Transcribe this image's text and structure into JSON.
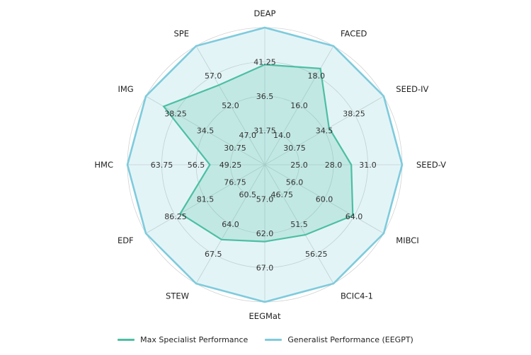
{
  "chart_data": {
    "type": "radar",
    "title": "",
    "axes": [
      "DEAP",
      "FACED",
      "SEED-IV",
      "SEED-V",
      "MIBCI",
      "BCIC4-1",
      "EEGMat",
      "STEW",
      "EDF",
      "HMC",
      "IMG",
      "SPE"
    ],
    "tick_labels": [
      [
        "31.75",
        "36.5",
        "41.25"
      ],
      [
        "14.0",
        "16.0",
        "18.0"
      ],
      [
        "30.75",
        "34.5",
        "38.25"
      ],
      [
        "25.0",
        "28.0",
        "31.0"
      ],
      [
        "56.0",
        "60.0",
        "64.0"
      ],
      [
        "46.75",
        "51.5",
        "56.25"
      ],
      [
        "57.0",
        "62.0",
        "67.0"
      ],
      [
        "60.5",
        "64.0",
        "67.5"
      ],
      [
        "76.75",
        "81.5",
        "86.25"
      ],
      [
        "49.25",
        "56.5",
        "63.75"
      ],
      [
        "30.75",
        "34.5",
        "38.25"
      ],
      [
        "47.0",
        "52.0",
        "57.0"
      ]
    ],
    "ring_levels": 4,
    "series": [
      {
        "name": "Max Specialist Performance",
        "color": "#4cbfa3",
        "values": [
          0.73,
          0.81,
          0.54,
          0.63,
          0.74,
          0.59,
          0.56,
          0.63,
          0.71,
          0.4,
          0.85,
          0.67
        ]
      },
      {
        "name": "Generalist Performance (EEGPT)",
        "color": "#7ecbdc",
        "values": [
          1,
          1,
          1,
          1,
          1,
          1,
          1,
          1,
          1,
          1,
          1,
          1
        ]
      }
    ],
    "legend_position": "bottom"
  }
}
